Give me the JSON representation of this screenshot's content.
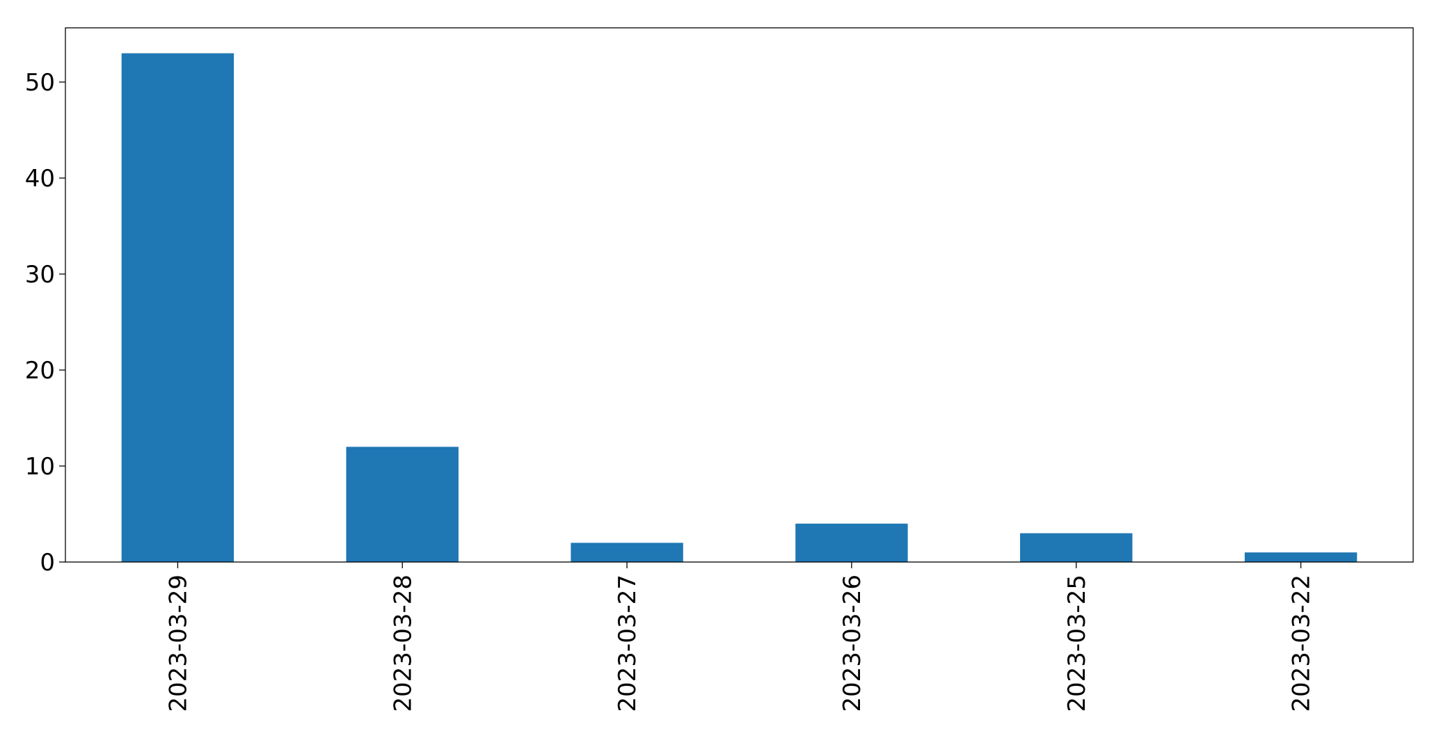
{
  "chart_data": {
    "type": "bar",
    "categories": [
      "2023-03-29",
      "2023-03-28",
      "2023-03-27",
      "2023-03-26",
      "2023-03-25",
      "2023-03-22"
    ],
    "values": [
      53,
      12,
      2,
      4,
      3,
      1
    ],
    "color": "#1f77b4",
    "ylim": [
      0,
      55.65
    ],
    "yticks": [
      0,
      10,
      20,
      30,
      40,
      50
    ],
    "grid": false
  }
}
